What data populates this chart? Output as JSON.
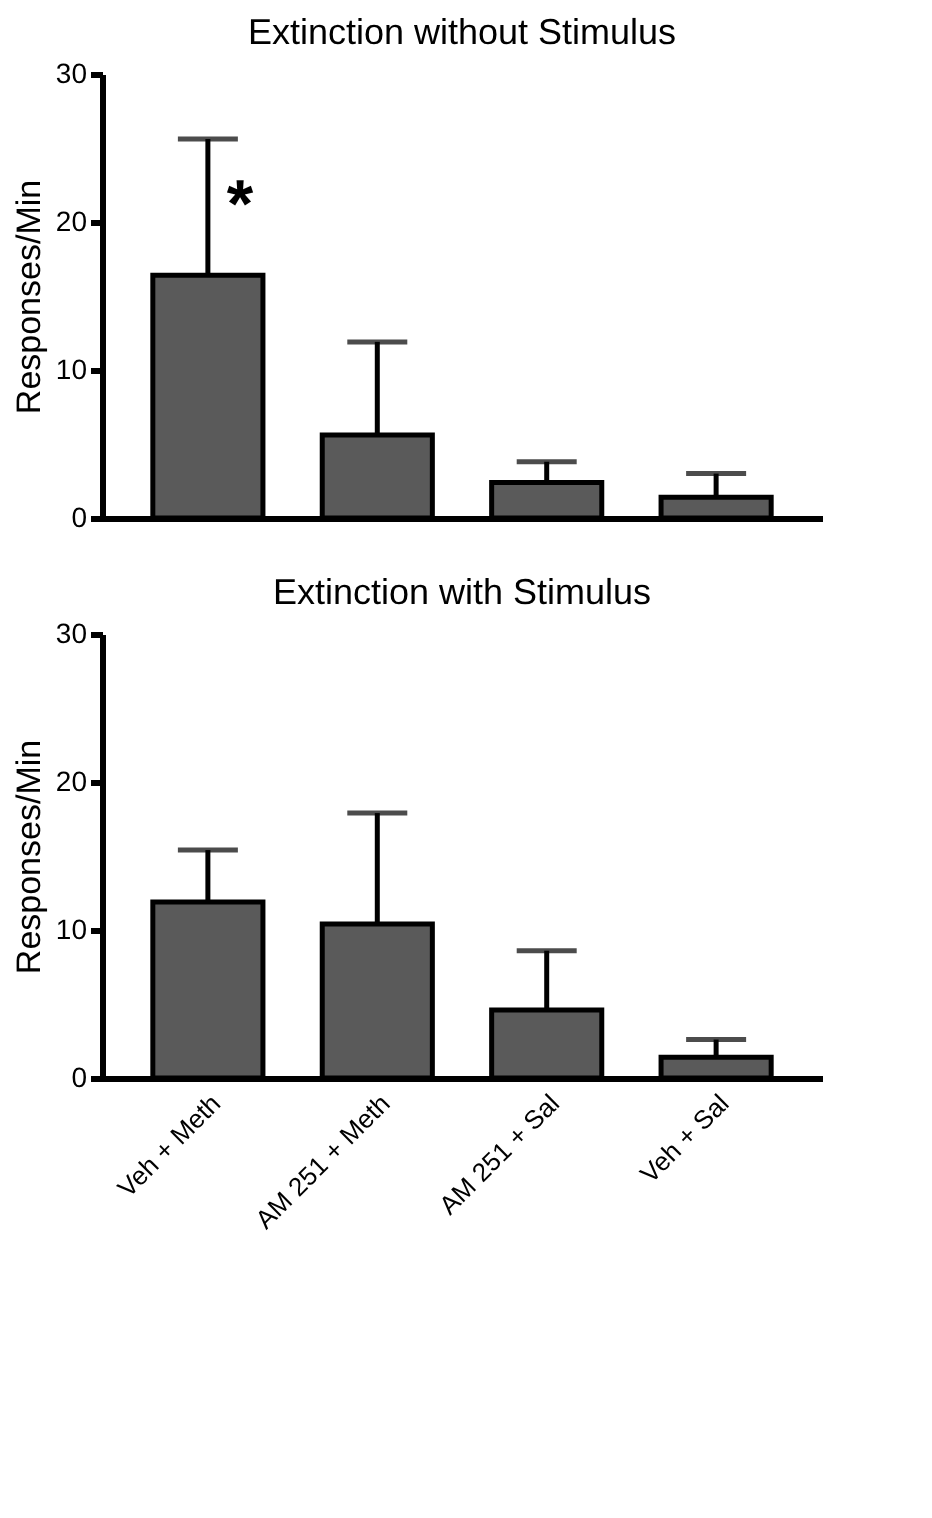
{
  "chart_data": [
    {
      "type": "bar",
      "title": "Extinction without Stimulus",
      "ylabel": "Responses/Min",
      "categories": [
        "Veh + Meth",
        "AM 251 + Meth",
        "AM 251 + Sal",
        "Veh + Sal"
      ],
      "values": [
        16.4,
        5.6,
        2.4,
        1.4
      ],
      "color": "#5a5a5a",
      "errors": [
        [
          16.4,
          25.6
        ],
        [
          5.6,
          11.9
        ],
        [
          2.4,
          3.8
        ],
        [
          1.4,
          3.0
        ]
      ],
      "ylim": [
        0,
        30
      ],
      "yticks": [
        0,
        10,
        20,
        30
      ],
      "grid": false,
      "tick_labels": "y",
      "annotations": [
        {
          "text": "*",
          "x": "Veh + Meth",
          "y": 21
        }
      ]
    },
    {
      "type": "bar",
      "title": "Extinction with Stimulus",
      "ylabel": "Responses/Min",
      "categories": [
        "Veh + Meth",
        "AM 251 + Meth",
        "AM 251 + Sal",
        "Veh + Sal"
      ],
      "values": [
        11.9,
        10.4,
        4.6,
        1.4
      ],
      "color": "#5a5a5a",
      "errors": [
        [
          11.9,
          15.4
        ],
        [
          10.4,
          17.9
        ],
        [
          4.6,
          8.6
        ],
        [
          1.4,
          2.6
        ]
      ],
      "ylim": [
        0,
        30
      ],
      "yticks": [
        0,
        10,
        20,
        30
      ],
      "grid": false
    }
  ]
}
